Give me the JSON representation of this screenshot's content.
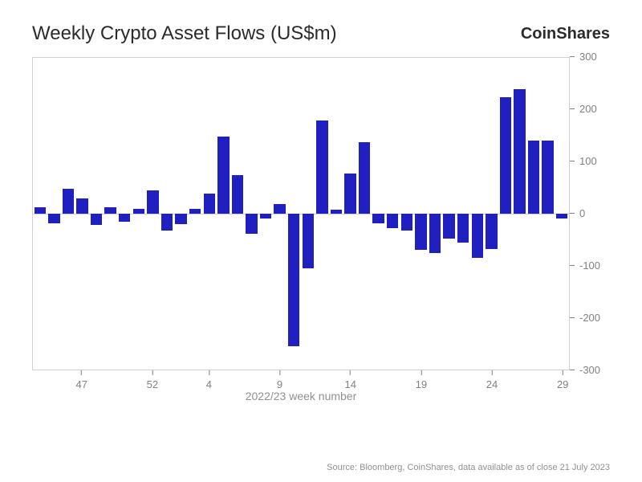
{
  "chart": {
    "type": "bar",
    "title": "Weekly Crypto Asset Flows (US$m)",
    "brand": "CoinShares",
    "xlabel": "2022/23 week number",
    "source": "Source: Bloomberg, CoinShares, data available as of close 21 July 2023",
    "ylim": [
      -300,
      300
    ],
    "yticks": [
      -300,
      -200,
      -100,
      0,
      100,
      200,
      300
    ],
    "xticks": [
      {
        "label": "47",
        "index": 3
      },
      {
        "label": "52",
        "index": 8
      },
      {
        "label": "4",
        "index": 12
      },
      {
        "label": "9",
        "index": 17
      },
      {
        "label": "14",
        "index": 22
      },
      {
        "label": "19",
        "index": 27
      },
      {
        "label": "24",
        "index": 32
      },
      {
        "label": "29",
        "index": 37
      }
    ],
    "bar_color": "#2020c0",
    "background_color": "#ffffff",
    "axis_color": "#d0d0d0",
    "tick_label_color": "#808080",
    "title_fontsize": 24,
    "brand_fontsize": 20,
    "tick_fontsize": 13,
    "xlabel_fontsize": 14,
    "source_fontsize": 11,
    "bar_gap_pct": 0.18,
    "values": [
      12,
      -18,
      48,
      30,
      -22,
      12,
      -15,
      10,
      45,
      -32,
      -20,
      10,
      38,
      148,
      75,
      -38,
      -10,
      18,
      -255,
      -105,
      180,
      8,
      78,
      138,
      -18,
      -28,
      -32,
      -70,
      -75,
      -48,
      -55,
      -85,
      -68,
      225,
      240,
      140,
      140,
      -10
    ]
  }
}
